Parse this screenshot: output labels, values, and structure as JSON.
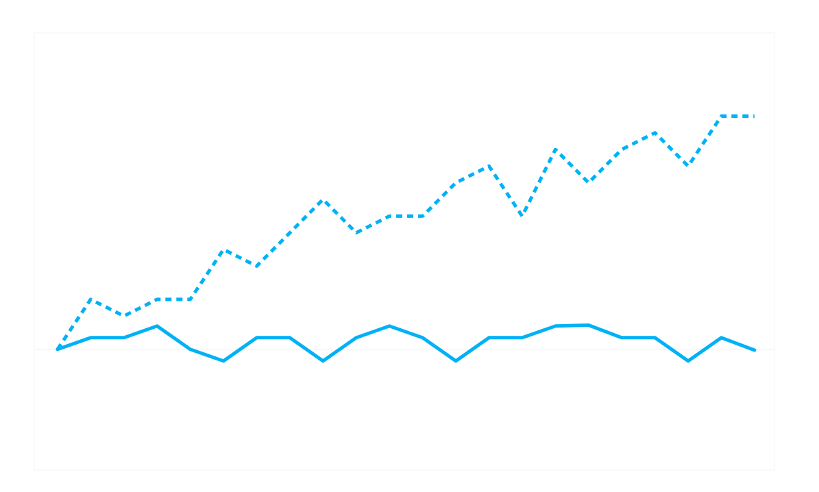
{
  "chart_data": {
    "type": "line",
    "title": "",
    "xlabel": "",
    "ylabel": "",
    "x": [
      0,
      1,
      2,
      3,
      4,
      5,
      6,
      7,
      8,
      9,
      10,
      11,
      12,
      13,
      14,
      15,
      16,
      17,
      18,
      19,
      20,
      21
    ],
    "xlim": [
      -0.7,
      21.6
    ],
    "ylim": [
      -7.25,
      19
    ],
    "grid": false,
    "legend": "none",
    "series": [
      {
        "style": "dotted",
        "color": "#00b2f5",
        "values": [
          0,
          3,
          2,
          3,
          3,
          6,
          5,
          7,
          9,
          7,
          8,
          8,
          10,
          11,
          8,
          12,
          10,
          12,
          13,
          11,
          14,
          14
        ]
      },
      {
        "style": "solid",
        "color": "#00b2f5",
        "values": [
          0,
          0.7,
          0.7,
          1.4,
          0,
          -0.7,
          0.7,
          0.7,
          -0.7,
          0.7,
          1.4,
          0.7,
          -0.7,
          0.7,
          0.7,
          1.4,
          1.45,
          0.7,
          0.7,
          -0.7,
          0.7,
          -0.05
        ]
      }
    ],
    "reference_line": {
      "y": 0,
      "color": "#f7f7f7"
    }
  }
}
